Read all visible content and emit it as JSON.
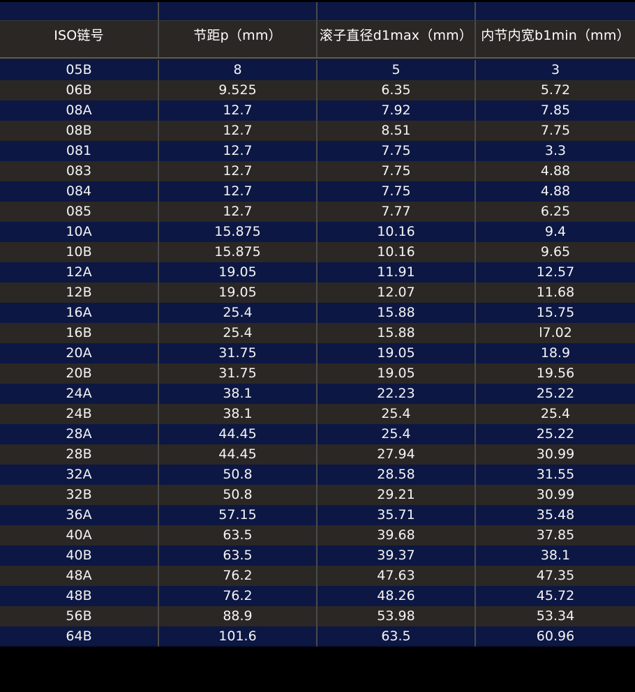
{
  "table": {
    "headers": [
      "ISO链号",
      "节距p（mm）",
      "滚子直径d1max（mm）",
      "内节内宽b1min（mm）"
    ],
    "rows": [
      [
        "05B",
        "8",
        "5",
        "3"
      ],
      [
        "06B",
        "9.525",
        "6.35",
        "5.72"
      ],
      [
        "08A",
        "12.7",
        "7.92",
        "7.85"
      ],
      [
        "08B",
        "12.7",
        "8.51",
        "7.75"
      ],
      [
        "081",
        "12.7",
        "7.75",
        "3.3"
      ],
      [
        "083",
        "12.7",
        "7.75",
        "4.88"
      ],
      [
        "084",
        "12.7",
        "7.75",
        "4.88"
      ],
      [
        "085",
        "12.7",
        "7.77",
        "6.25"
      ],
      [
        "10A",
        "15.875",
        "10.16",
        "9.4"
      ],
      [
        "10B",
        "15.875",
        "10.16",
        "9.65"
      ],
      [
        "12A",
        "19.05",
        "11.91",
        "12.57"
      ],
      [
        "12B",
        "19.05",
        "12.07",
        "11.68"
      ],
      [
        "16A",
        "25.4",
        "15.88",
        "15.75"
      ],
      [
        "16B",
        "25.4",
        "15.88",
        "l7.02"
      ],
      [
        "20A",
        "31.75",
        "19.05",
        "18.9"
      ],
      [
        "20B",
        "31.75",
        "19.05",
        "19.56"
      ],
      [
        "24A",
        "38.1",
        "22.23",
        "25.22"
      ],
      [
        "24B",
        "38.1",
        "25.4",
        "25.4"
      ],
      [
        "28A",
        "44.45",
        "25.4",
        "25.22"
      ],
      [
        "28B",
        "44.45",
        "27.94",
        "30.99"
      ],
      [
        "32A",
        "50.8",
        "28.58",
        "31.55"
      ],
      [
        "32B",
        "50.8",
        "29.21",
        "30.99"
      ],
      [
        "36A",
        "57.15",
        "35.71",
        "35.48"
      ],
      [
        "40A",
        "63.5",
        "39.68",
        "37.85"
      ],
      [
        "40B",
        "63.5",
        "39.37",
        "38.1"
      ],
      [
        "48A",
        "76.2",
        "47.63",
        "47.35"
      ],
      [
        "48B",
        "76.2",
        "48.26",
        "45.72"
      ],
      [
        "56B",
        "88.9",
        "53.98",
        "53.34"
      ],
      [
        "64B",
        "101.6",
        "63.5",
        "60.96"
      ]
    ]
  },
  "colors": {
    "row_blue": "#0c1744",
    "row_dark": "#2b2724",
    "text": "#f4f4f4",
    "background": "#000000"
  }
}
